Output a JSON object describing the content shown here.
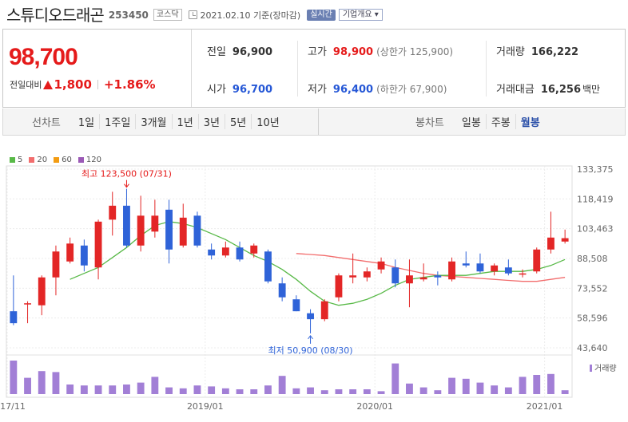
{
  "header": {
    "name": "스튜디오드래곤",
    "code": "253450",
    "market": "코스닥",
    "date": "2021.02.10 기준(장마감)",
    "realtime": "실시간",
    "company_overview": "기업개요 ▾"
  },
  "price": {
    "current": "98,700",
    "change_label": "전일대비",
    "change": "1,800",
    "change_rate": "+1.86%"
  },
  "stats": {
    "prev_label": "전일",
    "prev": "96,900",
    "open_label": "시가",
    "open": "96,700",
    "high_label": "고가",
    "high": "98,900",
    "upper_limit": "(상한가 125,900)",
    "low_label": "저가",
    "low": "96,400",
    "lower_limit": "(하한가 67,900)",
    "volume_label": "거래량",
    "volume": "166,222",
    "amount_label": "거래대금",
    "amount": "16,256",
    "amount_unit": "백만"
  },
  "period_bar": {
    "line_label": "선차트",
    "line_items": [
      "1일",
      "1주일",
      "3개월",
      "1년",
      "3년",
      "5년",
      "10년"
    ],
    "candle_label": "봉차트",
    "candle_items": [
      "일봉",
      "주봉",
      "월봉"
    ],
    "active": "월봉"
  },
  "colors": {
    "up": "#e32626",
    "down": "#2f63d8",
    "ma5": "#58b947",
    "ma20": "#f26d6d",
    "ma60": "#f39c12",
    "ma120": "#9b59b6",
    "volume": "#a27fd6"
  },
  "chart_data": {
    "type": "candlestick",
    "legend": [
      {
        "name": "5",
        "color": "#58b947"
      },
      {
        "name": "20",
        "color": "#f26d6d"
      },
      {
        "name": "60",
        "color": "#f39c12"
      },
      {
        "name": "120",
        "color": "#9b59b6"
      }
    ],
    "y_ticks": [
      "133,375",
      "118,419",
      "103,463",
      "88,508",
      "73,552",
      "58,596",
      "43,640"
    ],
    "ylim": [
      43640,
      133375
    ],
    "x_ticks": [
      {
        "label": "2017/11",
        "index": 0
      },
      {
        "label": "2019/01",
        "index": 14
      },
      {
        "label": "2020/01",
        "index": 26
      },
      {
        "label": "2021/01",
        "index": 38
      }
    ],
    "volume_label": "거래량",
    "annotations": [
      {
        "text": "최고 123,500 (07/31)",
        "index": 8,
        "value": 123500,
        "type": "high"
      },
      {
        "text": "최저 50,900 (08/30)",
        "index": 21,
        "value": 50900,
        "type": "low"
      }
    ],
    "candles": [
      {
        "o": 62000,
        "h": 80000,
        "l": 55000,
        "c": 56000
      },
      {
        "o": 66000,
        "h": 67000,
        "l": 56000,
        "c": 66000
      },
      {
        "o": 65000,
        "h": 80000,
        "l": 60000,
        "c": 79000
      },
      {
        "o": 79000,
        "h": 95000,
        "l": 70000,
        "c": 92000
      },
      {
        "o": 87000,
        "h": 99000,
        "l": 86000,
        "c": 96000
      },
      {
        "o": 95000,
        "h": 98000,
        "l": 82000,
        "c": 85000
      },
      {
        "o": 84000,
        "h": 108000,
        "l": 78000,
        "c": 107000
      },
      {
        "o": 108000,
        "h": 122000,
        "l": 100000,
        "c": 115000
      },
      {
        "o": 115000,
        "h": 123500,
        "l": 94000,
        "c": 95000
      },
      {
        "o": 95000,
        "h": 120000,
        "l": 92000,
        "c": 110000
      },
      {
        "o": 102000,
        "h": 118000,
        "l": 99000,
        "c": 110000
      },
      {
        "o": 113000,
        "h": 118000,
        "l": 86000,
        "c": 93000
      },
      {
        "o": 95000,
        "h": 116000,
        "l": 94000,
        "c": 109000
      },
      {
        "o": 110000,
        "h": 112000,
        "l": 94000,
        "c": 95000
      },
      {
        "o": 93000,
        "h": 96000,
        "l": 88000,
        "c": 90000
      },
      {
        "o": 90000,
        "h": 97000,
        "l": 89000,
        "c": 94000
      },
      {
        "o": 94000,
        "h": 97000,
        "l": 87000,
        "c": 88000
      },
      {
        "o": 91000,
        "h": 96000,
        "l": 89000,
        "c": 95000
      },
      {
        "o": 92000,
        "h": 93000,
        "l": 76000,
        "c": 77000
      },
      {
        "o": 76000,
        "h": 79000,
        "l": 67000,
        "c": 69000
      },
      {
        "o": 68000,
        "h": 70000,
        "l": 62000,
        "c": 62000
      },
      {
        "o": 61000,
        "h": 63000,
        "l": 50900,
        "c": 58000
      },
      {
        "o": 58000,
        "h": 68000,
        "l": 57000,
        "c": 67000
      },
      {
        "o": 69000,
        "h": 81000,
        "l": 67000,
        "c": 80000
      },
      {
        "o": 79000,
        "h": 91000,
        "l": 76000,
        "c": 80000
      },
      {
        "o": 79000,
        "h": 84000,
        "l": 77000,
        "c": 82000
      },
      {
        "o": 83000,
        "h": 89000,
        "l": 81000,
        "c": 87000
      },
      {
        "o": 84000,
        "h": 88000,
        "l": 74000,
        "c": 76000
      },
      {
        "o": 76000,
        "h": 88000,
        "l": 64000,
        "c": 80000
      },
      {
        "o": 78000,
        "h": 86000,
        "l": 77000,
        "c": 79000
      },
      {
        "o": 80000,
        "h": 82000,
        "l": 75000,
        "c": 79000
      },
      {
        "o": 78000,
        "h": 89000,
        "l": 77000,
        "c": 87000
      },
      {
        "o": 86000,
        "h": 92000,
        "l": 84000,
        "c": 85000
      },
      {
        "o": 86000,
        "h": 91000,
        "l": 81000,
        "c": 82000
      },
      {
        "o": 82000,
        "h": 86000,
        "l": 80000,
        "c": 85000
      },
      {
        "o": 84000,
        "h": 88000,
        "l": 80000,
        "c": 81000
      },
      {
        "o": 81000,
        "h": 83000,
        "l": 79000,
        "c": 81000
      },
      {
        "o": 82000,
        "h": 94000,
        "l": 81000,
        "c": 93000
      },
      {
        "o": 93000,
        "h": 112000,
        "l": 91000,
        "c": 99000
      },
      {
        "o": 97000,
        "h": 103000,
        "l": 96000,
        "c": 98700
      }
    ],
    "ma5": [
      null,
      null,
      null,
      null,
      78000,
      81000,
      84000,
      89000,
      94000,
      100000,
      105000,
      107000,
      106000,
      104000,
      101000,
      98000,
      94000,
      90000,
      87000,
      83000,
      78000,
      72000,
      67000,
      65000,
      66000,
      68000,
      71000,
      75000,
      78000,
      79000,
      80000,
      80000,
      80000,
      81000,
      82000,
      82000,
      82000,
      83000,
      85000,
      88000
    ],
    "ma20": [
      null,
      null,
      null,
      null,
      null,
      null,
      null,
      null,
      null,
      null,
      null,
      null,
      null,
      null,
      null,
      null,
      null,
      null,
      null,
      null,
      91000,
      90500,
      90000,
      89000,
      88000,
      87000,
      86000,
      84000,
      82500,
      81000,
      80000,
      79500,
      79000,
      78500,
      78000,
      77500,
      77000,
      77000,
      78000,
      79000
    ],
    "volume": [
      1.75,
      0.85,
      1.2,
      1.15,
      0.5,
      0.45,
      0.45,
      0.45,
      0.5,
      0.6,
      0.9,
      0.35,
      0.3,
      0.45,
      0.4,
      0.3,
      0.25,
      0.25,
      0.45,
      0.95,
      0.3,
      0.35,
      0.2,
      0.25,
      0.25,
      0.25,
      0.15,
      1.6,
      0.55,
      0.35,
      0.2,
      0.85,
      0.8,
      0.6,
      0.45,
      0.35,
      0.9,
      1.0,
      1.05,
      0.2
    ]
  }
}
